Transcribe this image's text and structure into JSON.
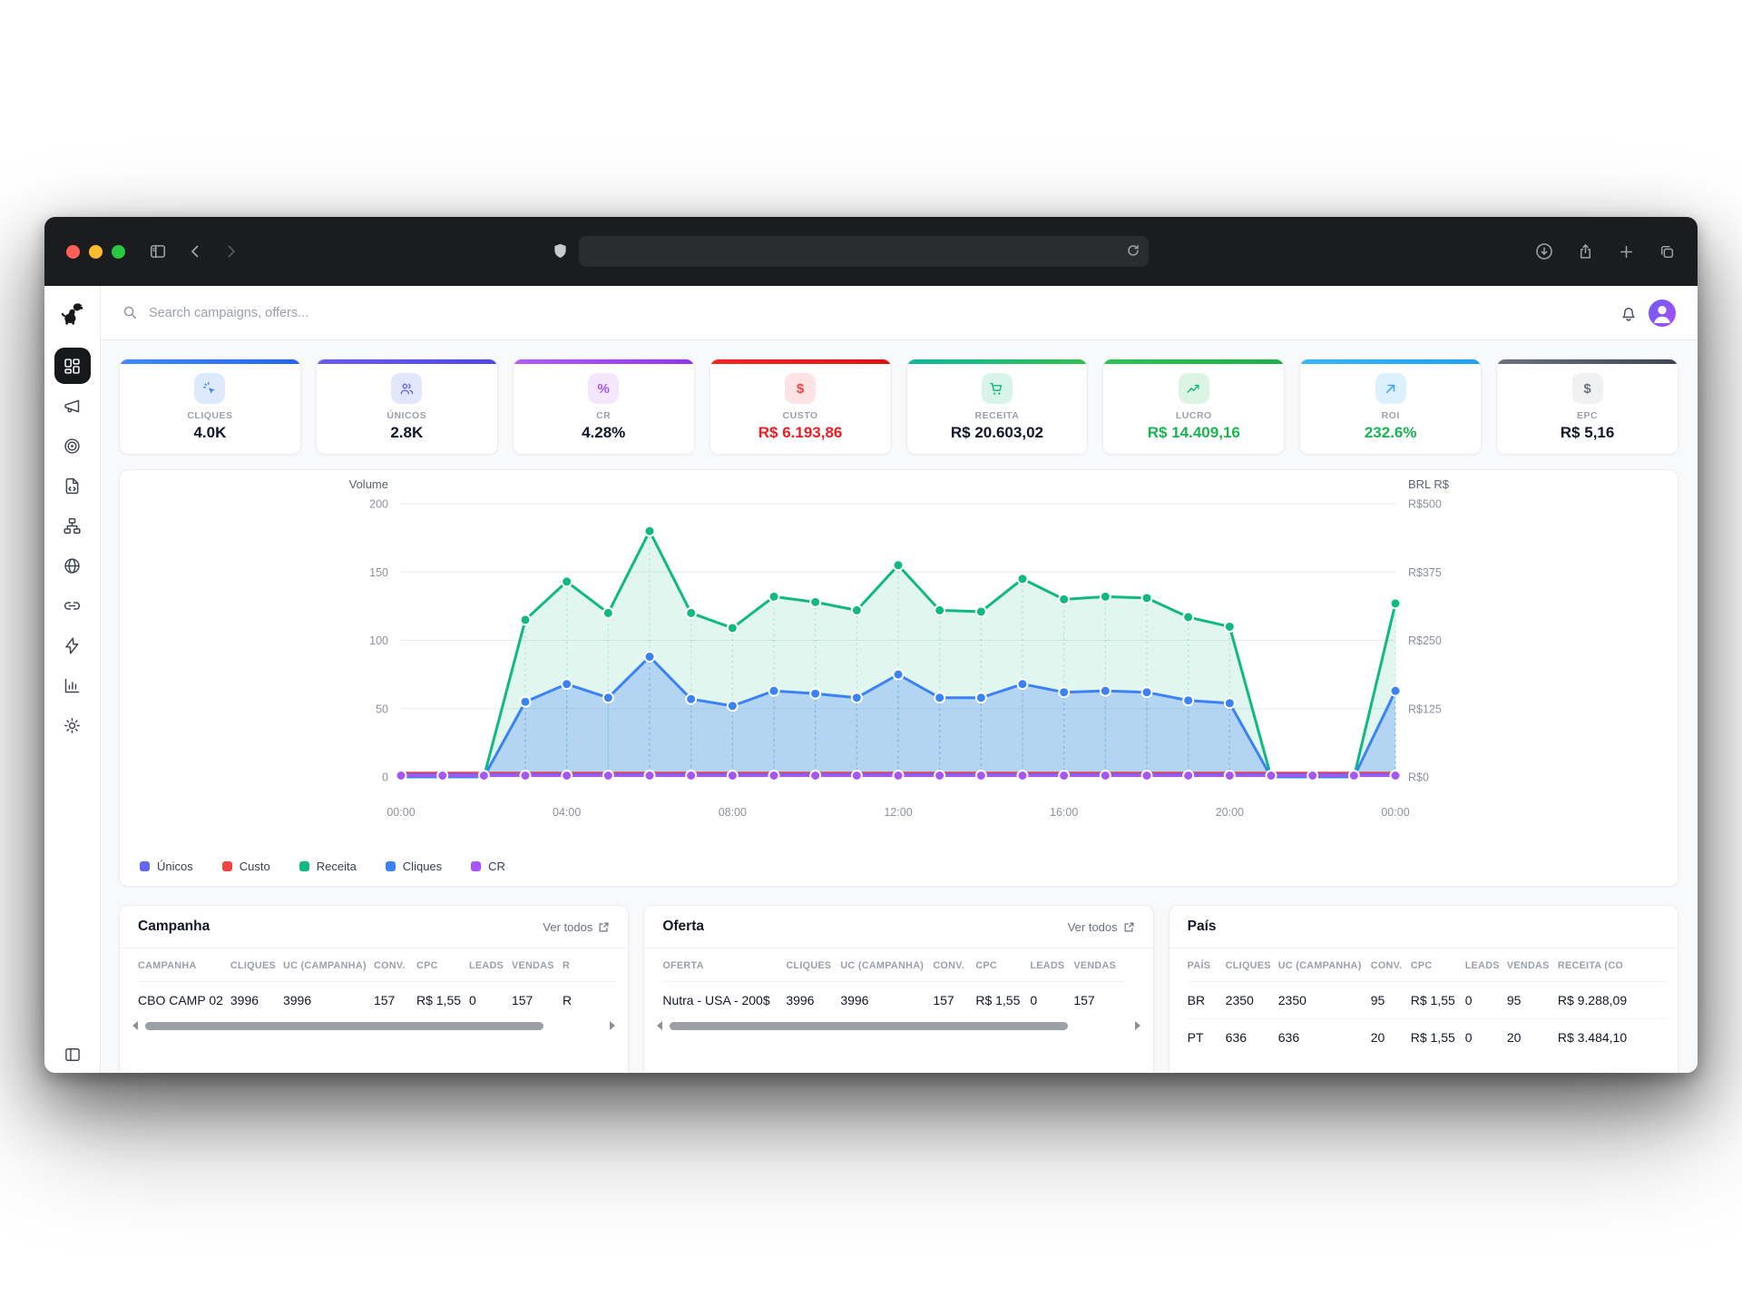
{
  "browser": {
    "traffic_lights": [
      "#ff5f57",
      "#febc2e",
      "#28c840"
    ],
    "url_value": ""
  },
  "header": {
    "search_placeholder": "Search campaigns, offers..."
  },
  "sidebar": {
    "items": [
      "dashboard",
      "megaphone",
      "target",
      "file-code",
      "hierarchy",
      "globe",
      "link",
      "zap",
      "bar-chart",
      "gear"
    ],
    "active_item": "dashboard",
    "bottom": "panel-collapse"
  },
  "metric_cards": [
    {
      "label": "CLIQUES",
      "value": "4.0K",
      "accent": "#3e8bfd",
      "accent2": "#2563eb",
      "tile_bg": "#ddeafe",
      "icon": "click-icon",
      "icon_color": "#3b82f6",
      "value_color": "#0f172a"
    },
    {
      "label": "ÚNICOS",
      "value": "2.8K",
      "accent": "#6a5cf0",
      "accent2": "#4f46e5",
      "tile_bg": "#e3e7fd",
      "icon": "users-icon",
      "icon_color": "#6366f1",
      "value_color": "#0f172a"
    },
    {
      "label": "CR",
      "value": "4.28%",
      "accent": "#b35cf7",
      "accent2": "#9333ea",
      "tile_bg": "#f3e6fd",
      "icon": "percent-icon",
      "icon_color": "#a855f7",
      "value_color": "#0f172a"
    },
    {
      "label": "CUSTO",
      "value": "R$ 6.193,86",
      "accent": "#f42525",
      "accent2": "#e01212",
      "tile_bg": "#fde3e3",
      "icon": "dollar-icon",
      "icon_color": "#ef4444",
      "value_color": "#ef1c24"
    },
    {
      "label": "RECEITA",
      "value": "R$ 20.603,02",
      "accent": "#0fb8a0",
      "accent2": "#2fc04d",
      "tile_bg": "#d8f3e7",
      "icon": "cart-icon",
      "icon_color": "#10b981",
      "value_color": "#0f172a"
    },
    {
      "label": "LUCRO",
      "value": "R$ 14.409,16",
      "accent": "#2ec351",
      "accent2": "#1fae46",
      "tile_bg": "#dcf5e3",
      "icon": "trend-up-icon",
      "icon_color": "#10b981",
      "value_color": "#19b552"
    },
    {
      "label": "ROI",
      "value": "232.6%",
      "accent": "#38b6f8",
      "accent2": "#1da2f0",
      "tile_bg": "#dcf0fd",
      "icon": "arrow-up-right-icon",
      "icon_color": "#38a9f5",
      "value_color": "#19b552"
    },
    {
      "label": "EPC",
      "value": "R$ 5,16",
      "accent": "#6b7280",
      "accent2": "#3f4652",
      "tile_bg": "#f0f1f3",
      "icon": "dollar-icon",
      "icon_color": "#6b7280",
      "value_color": "#0f172a"
    }
  ],
  "chart_data": {
    "type": "area",
    "x_labels": [
      "00:00",
      "04:00",
      "08:00",
      "12:00",
      "16:00",
      "20:00",
      "00:00"
    ],
    "points_per_label": 4,
    "left_axis": {
      "title": "Volume",
      "ticks": [
        0,
        50,
        100,
        150,
        200
      ],
      "max": 200
    },
    "right_axis": {
      "title": "BRL R$",
      "ticks": [
        "R$0",
        "R$125",
        "R$250",
        "R$375",
        "R$500"
      ]
    },
    "grid": true,
    "legend_position": "bottom-left",
    "series": [
      {
        "name": "Únicos",
        "color": "#6366f1",
        "values": [
          2,
          2,
          2,
          2,
          2,
          2,
          2,
          2,
          2,
          2,
          2,
          2,
          2,
          2,
          2,
          2,
          2,
          2,
          2,
          2,
          2,
          2,
          2,
          2,
          2
        ]
      },
      {
        "name": "Custo",
        "color": "#ef4444",
        "values": [
          3,
          3,
          3,
          3,
          3,
          3,
          3,
          3,
          3,
          3,
          3,
          3,
          3,
          3,
          3,
          3,
          3,
          3,
          3,
          3,
          3,
          3,
          3,
          3,
          3
        ]
      },
      {
        "name": "Receita",
        "color": "#10b981",
        "fill": "rgba(16,185,129,0.12)",
        "values": [
          0,
          0,
          0,
          115,
          143,
          120,
          180,
          120,
          109,
          132,
          128,
          122,
          155,
          122,
          121,
          145,
          130,
          132,
          131,
          117,
          110,
          0,
          0,
          0,
          127
        ]
      },
      {
        "name": "Cliques",
        "color": "#3b82f6",
        "fill": "rgba(59,130,246,0.28)",
        "values": [
          0,
          0,
          0,
          55,
          68,
          58,
          88,
          57,
          52,
          63,
          61,
          58,
          75,
          58,
          58,
          68,
          62,
          63,
          62,
          56,
          54,
          0,
          0,
          0,
          63
        ]
      },
      {
        "name": "CR",
        "color": "#a855f7",
        "values": [
          1,
          1,
          1,
          1,
          1,
          1,
          1,
          1,
          1,
          1,
          1,
          1,
          1,
          1,
          1,
          1,
          1,
          1,
          1,
          1,
          1,
          1,
          1,
          1,
          1
        ]
      }
    ]
  },
  "tables": [
    {
      "title": "Campanha",
      "link": "Ver todos",
      "scrollbar": true,
      "columns": [
        "CAMPANHA",
        "CLIQUES",
        "UC (CAMPANHA)",
        "CONV.",
        "CPC",
        "LEADS",
        "VENDAS",
        "R"
      ],
      "rows": [
        [
          "CBO CAMP 02",
          "3996",
          "3996",
          "157",
          "R$ 1,55",
          "0",
          "157",
          "R"
        ]
      ]
    },
    {
      "title": "Oferta",
      "link": "Ver todos",
      "scrollbar": true,
      "columns": [
        "OFERTA",
        "CLIQUES",
        "UC (CAMPANHA)",
        "CONV.",
        "CPC",
        "LEADS",
        "VENDAS"
      ],
      "rows": [
        [
          "Nutra - USA - 200$",
          "3996",
          "3996",
          "157",
          "R$ 1,55",
          "0",
          "157"
        ]
      ]
    },
    {
      "title": "País",
      "link": "",
      "scrollbar": false,
      "columns": [
        "PAÍS",
        "CLIQUES",
        "UC (CAMPANHA)",
        "CONV.",
        "CPC",
        "LEADS",
        "VENDAS",
        "RECEITA (CO"
      ],
      "rows": [
        [
          "BR",
          "2350",
          "2350",
          "95",
          "R$ 1,55",
          "0",
          "95",
          "R$ 9.288,09"
        ],
        [
          "PT",
          "636",
          "636",
          "20",
          "R$ 1,55",
          "0",
          "20",
          "R$ 3.484,10"
        ]
      ]
    }
  ]
}
